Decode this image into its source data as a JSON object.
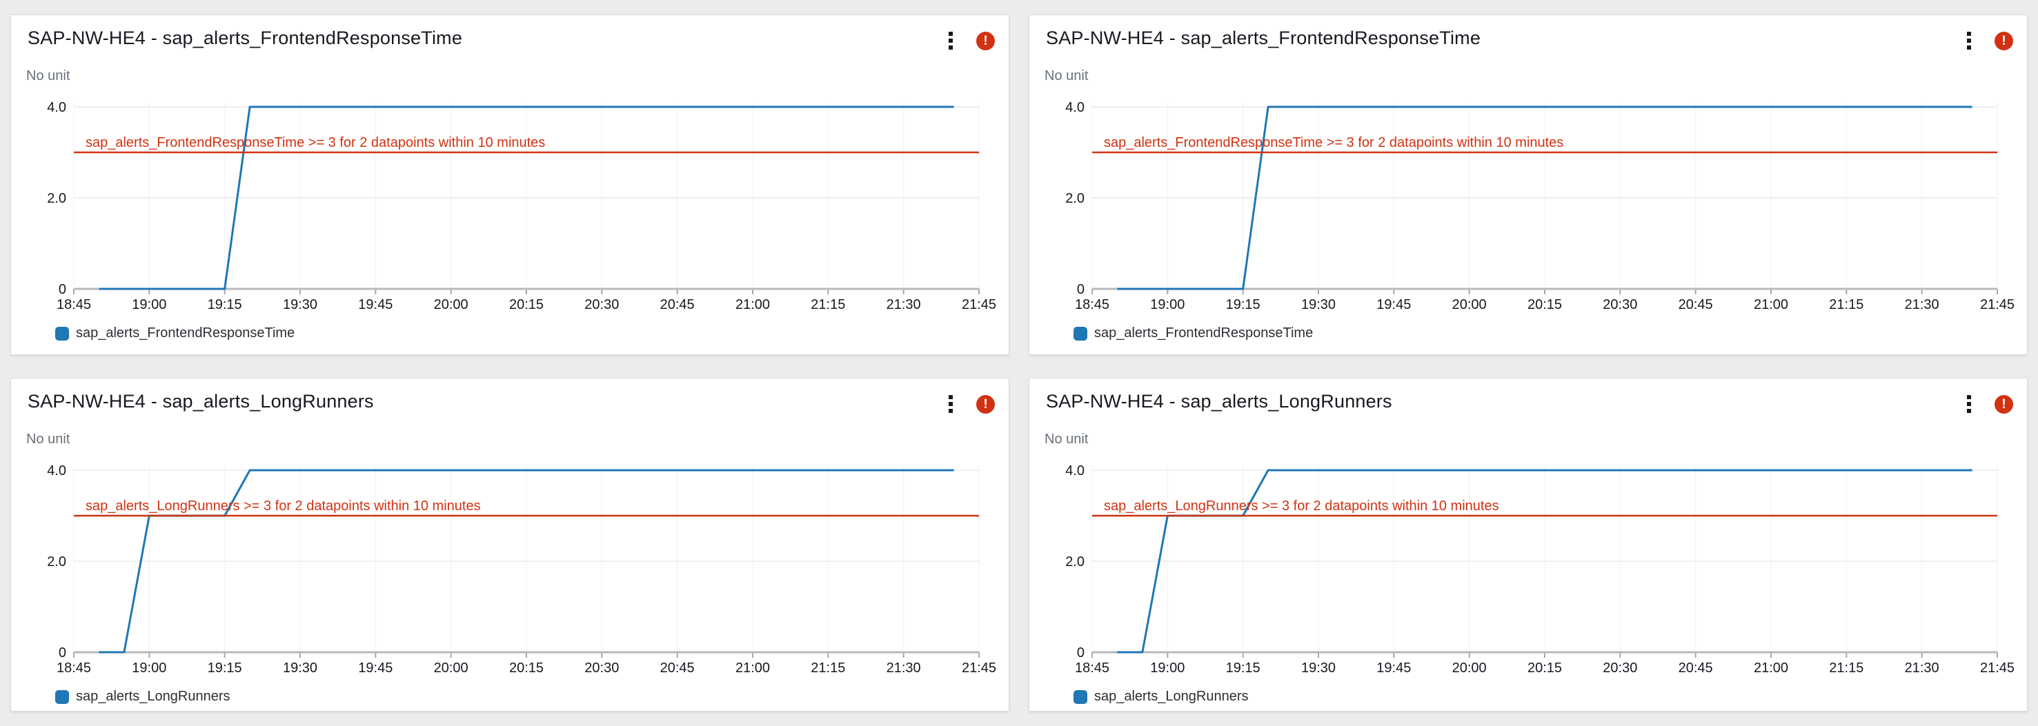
{
  "page": {
    "background_color": "#ececec",
    "panel_background": "#ffffff"
  },
  "colors": {
    "series_blue": "#1f77b4",
    "threshold_red": "#d13212",
    "alarm_badge_red": "#d13212",
    "title_text": "#16191f",
    "axis_text": "#16191f",
    "unit_text": "#687078",
    "grid_line": "#e8e8e8",
    "axis_line": "#b7babd"
  },
  "icons": {
    "menu": "kebab-menu-icon",
    "alarm": "alarm-error-icon",
    "alarm_glyph": "!",
    "legend_swatch": "series-color-swatch"
  },
  "chart_data": [
    {
      "type": "line",
      "title": "SAP-NW-HE4 - sap_alerts_FrontendResponseTime",
      "unit_label": "No unit",
      "alarm_badge": true,
      "x_tick_labels": [
        "18:45",
        "19:00",
        "19:15",
        "19:30",
        "19:45",
        "20:00",
        "20:15",
        "20:30",
        "20:45",
        "21:00",
        "21:15",
        "21:30",
        "21:45"
      ],
      "x_span_minutes": 180,
      "y_tick_labels": [
        "4.0",
        "2.0",
        "0"
      ],
      "y_tick_values": [
        4,
        2,
        0
      ],
      "ylim": [
        0,
        4.4
      ],
      "grid": true,
      "legend_position": "bottom-left",
      "legend": [
        {
          "label": "sap_alerts_FrontendResponseTime",
          "color": "#1f77b4"
        }
      ],
      "series": [
        {
          "name": "sap_alerts_FrontendResponseTime",
          "color": "#1f77b4",
          "points": [
            {
              "time": "18:50",
              "minutes_from_start": 5,
              "value": 0
            },
            {
              "time": "19:15",
              "minutes_from_start": 30,
              "value": 0
            },
            {
              "time": "19:20",
              "minutes_from_start": 35,
              "value": 4
            },
            {
              "time": "21:40",
              "minutes_from_start": 175,
              "value": 4
            }
          ]
        }
      ],
      "threshold": {
        "value": 3,
        "color": "#d13212",
        "label": "sap_alerts_FrontendResponseTime >= 3 for 2 datapoints within 10 minutes"
      }
    },
    {
      "type": "line",
      "title": "SAP-NW-HE4 - sap_alerts_FrontendResponseTime",
      "unit_label": "No unit",
      "alarm_badge": true,
      "x_tick_labels": [
        "18:45",
        "19:00",
        "19:15",
        "19:30",
        "19:45",
        "20:00",
        "20:15",
        "20:30",
        "20:45",
        "21:00",
        "21:15",
        "21:30",
        "21:45"
      ],
      "x_span_minutes": 180,
      "y_tick_labels": [
        "4.0",
        "2.0",
        "0"
      ],
      "y_tick_values": [
        4,
        2,
        0
      ],
      "ylim": [
        0,
        4.4
      ],
      "grid": true,
      "legend_position": "bottom-left",
      "legend": [
        {
          "label": "sap_alerts_FrontendResponseTime",
          "color": "#1f77b4"
        }
      ],
      "series": [
        {
          "name": "sap_alerts_FrontendResponseTime",
          "color": "#1f77b4",
          "points": [
            {
              "time": "18:50",
              "minutes_from_start": 5,
              "value": 0
            },
            {
              "time": "19:15",
              "minutes_from_start": 30,
              "value": 0
            },
            {
              "time": "19:20",
              "minutes_from_start": 35,
              "value": 4
            },
            {
              "time": "21:40",
              "minutes_from_start": 175,
              "value": 4
            }
          ]
        }
      ],
      "threshold": {
        "value": 3,
        "color": "#d13212",
        "label": "sap_alerts_FrontendResponseTime >= 3 for 2 datapoints within 10 minutes"
      }
    },
    {
      "type": "line",
      "title": "SAP-NW-HE4 - sap_alerts_LongRunners",
      "unit_label": "No unit",
      "alarm_badge": true,
      "x_tick_labels": [
        "18:45",
        "19:00",
        "19:15",
        "19:30",
        "19:45",
        "20:00",
        "20:15",
        "20:30",
        "20:45",
        "21:00",
        "21:15",
        "21:30",
        "21:45"
      ],
      "x_span_minutes": 180,
      "y_tick_labels": [
        "4.0",
        "2.0",
        "0"
      ],
      "y_tick_values": [
        4,
        2,
        0
      ],
      "ylim": [
        0,
        4.4
      ],
      "grid": true,
      "legend_position": "bottom-left",
      "legend": [
        {
          "label": "sap_alerts_LongRunners",
          "color": "#1f77b4"
        }
      ],
      "series": [
        {
          "name": "sap_alerts_LongRunners",
          "color": "#1f77b4",
          "points": [
            {
              "time": "18:50",
              "minutes_from_start": 5,
              "value": 0
            },
            {
              "time": "18:55",
              "minutes_from_start": 10,
              "value": 0
            },
            {
              "time": "19:00",
              "minutes_from_start": 15,
              "value": 3
            },
            {
              "time": "19:15",
              "minutes_from_start": 30,
              "value": 3
            },
            {
              "time": "19:20",
              "minutes_from_start": 35,
              "value": 4
            },
            {
              "time": "21:40",
              "minutes_from_start": 175,
              "value": 4
            }
          ]
        }
      ],
      "threshold": {
        "value": 3,
        "color": "#d13212",
        "label": "sap_alerts_LongRunners >= 3 for 2 datapoints within 10 minutes"
      }
    },
    {
      "type": "line",
      "title": "SAP-NW-HE4 - sap_alerts_LongRunners",
      "unit_label": "No unit",
      "alarm_badge": true,
      "x_tick_labels": [
        "18:45",
        "19:00",
        "19:15",
        "19:30",
        "19:45",
        "20:00",
        "20:15",
        "20:30",
        "20:45",
        "21:00",
        "21:15",
        "21:30",
        "21:45"
      ],
      "x_span_minutes": 180,
      "y_tick_labels": [
        "4.0",
        "2.0",
        "0"
      ],
      "y_tick_values": [
        4,
        2,
        0
      ],
      "ylim": [
        0,
        4.4
      ],
      "grid": true,
      "legend_position": "bottom-left",
      "legend": [
        {
          "label": "sap_alerts_LongRunners",
          "color": "#1f77b4"
        }
      ],
      "series": [
        {
          "name": "sap_alerts_LongRunners",
          "color": "#1f77b4",
          "points": [
            {
              "time": "18:50",
              "minutes_from_start": 5,
              "value": 0
            },
            {
              "time": "18:55",
              "minutes_from_start": 10,
              "value": 0
            },
            {
              "time": "19:00",
              "minutes_from_start": 15,
              "value": 3
            },
            {
              "time": "19:15",
              "minutes_from_start": 30,
              "value": 3
            },
            {
              "time": "19:20",
              "minutes_from_start": 35,
              "value": 4
            },
            {
              "time": "21:40",
              "minutes_from_start": 175,
              "value": 4
            }
          ]
        }
      ],
      "threshold": {
        "value": 3,
        "color": "#d13212",
        "label": "sap_alerts_LongRunners >= 3 for 2 datapoints within 10 minutes"
      }
    }
  ]
}
